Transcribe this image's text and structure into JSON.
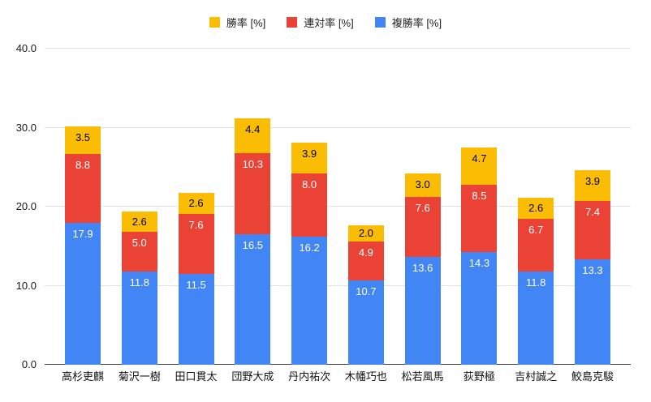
{
  "chart_data": {
    "type": "bar",
    "stacked": true,
    "title": "",
    "categories": [
      "高杉吏麒",
      "菊沢一樹",
      "田口貫太",
      "団野大成",
      "丹内祐次",
      "木幡巧也",
      "松若風馬",
      "荻野極",
      "吉村誠之",
      "鮫島克駿"
    ],
    "series": [
      {
        "name": "勝率 [%]",
        "color": "#FBBC04",
        "label_color": "#000000",
        "values": [
          3.5,
          2.6,
          2.6,
          4.4,
          3.9,
          2.0,
          3.0,
          4.7,
          2.6,
          3.9
        ]
      },
      {
        "name": "連対率 [%]",
        "color": "#EA4335",
        "label_color": "#FFFFFF",
        "values": [
          8.8,
          5.0,
          7.6,
          10.3,
          8.0,
          4.9,
          7.6,
          8.5,
          6.7,
          7.4
        ]
      },
      {
        "name": "複勝率 [%]",
        "color": "#4285F4",
        "label_color": "#FFFFFF",
        "values": [
          17.9,
          11.8,
          11.5,
          16.5,
          16.2,
          10.7,
          13.6,
          14.3,
          11.8,
          13.3
        ]
      }
    ],
    "stack_order_bottom_to_top": [
      "複勝率 [%]",
      "連対率 [%]",
      "勝率 [%]"
    ],
    "y_ticks": [
      0,
      10,
      20,
      30,
      40
    ],
    "y_tick_labels": [
      "0.0",
      "10.0",
      "20.0",
      "30.0",
      "40.0"
    ],
    "ylim": [
      0,
      40
    ],
    "grid": true,
    "legend_position": "top",
    "value_label_format": "one_decimal"
  },
  "colors": {
    "background": "#ffffff",
    "gridline": "#e2e2e2",
    "axis_line": "#3c3c3c",
    "tick_text": "#1a1a1a",
    "category_text": "#111111",
    "legend_text": "#202124"
  }
}
